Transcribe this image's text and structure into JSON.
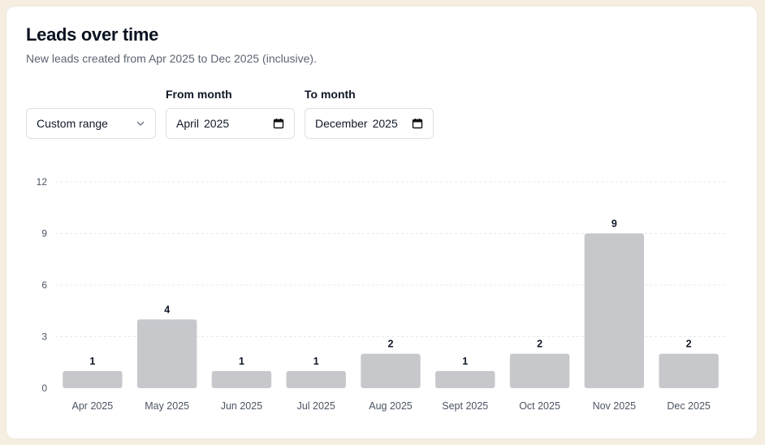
{
  "header": {
    "title": "Leads over time",
    "subtitle": "New leads created from Apr 2025 to Dec 2025 (inclusive)."
  },
  "filters": {
    "range_select": {
      "value": "Custom range"
    },
    "from_month": {
      "label": "From month",
      "value": "April",
      "year": "2025"
    },
    "to_month": {
      "label": "To month",
      "value": "December",
      "year": "2025"
    }
  },
  "icons": {
    "range_select": "chevron-down-icon",
    "from_month": "calendar-icon",
    "to_month": "calendar-icon"
  },
  "colors": {
    "bar": "#c7c8cc",
    "grid": "#e7e9ee"
  },
  "chart_data": {
    "type": "bar",
    "categories": [
      "Apr 2025",
      "May 2025",
      "Jun 2025",
      "Jul 2025",
      "Aug 2025",
      "Sept 2025",
      "Oct 2025",
      "Nov 2025",
      "Dec 2025"
    ],
    "values": [
      1,
      4,
      1,
      1,
      2,
      1,
      2,
      9,
      2
    ],
    "yticks": [
      0,
      3,
      6,
      9,
      12
    ],
    "ylim": [
      0,
      12
    ],
    "grid": true,
    "legend": false,
    "data_labels": true
  }
}
